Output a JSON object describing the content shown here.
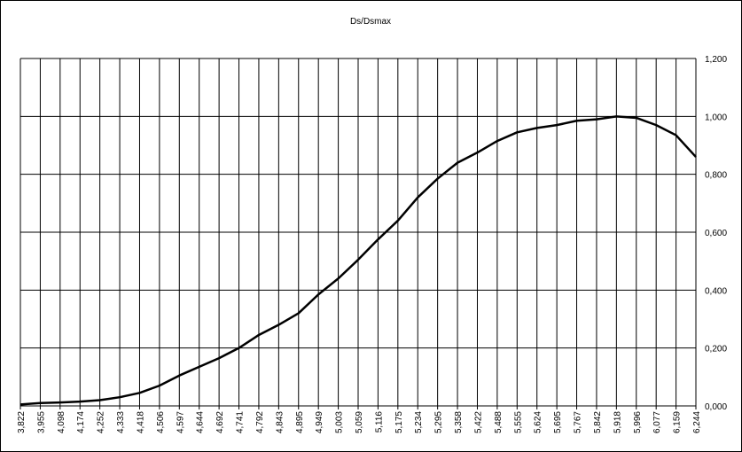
{
  "chart_data": {
    "type": "line",
    "title": "Ds/Dsmax",
    "categories": [
      "3,822",
      "3,955",
      "4,098",
      "4,174",
      "4,252",
      "4,333",
      "4,418",
      "4,506",
      "4,597",
      "4,644",
      "4,692",
      "4,741",
      "4,792",
      "4,843",
      "4,895",
      "4,949",
      "5,003",
      "5,059",
      "5,116",
      "5,175",
      "5,234",
      "5,295",
      "5,358",
      "5,422",
      "5,488",
      "5,555",
      "5,624",
      "5,695",
      "5,767",
      "5,842",
      "5,918",
      "5,996",
      "6,077",
      "6,159",
      "6,244"
    ],
    "values": [
      0.005,
      0.01,
      0.012,
      0.015,
      0.02,
      0.03,
      0.045,
      0.07,
      0.105,
      0.135,
      0.165,
      0.2,
      0.245,
      0.28,
      0.32,
      0.385,
      0.44,
      0.505,
      0.575,
      0.64,
      0.72,
      0.785,
      0.84,
      0.875,
      0.915,
      0.945,
      0.96,
      0.97,
      0.985,
      0.99,
      1.0,
      0.995,
      0.97,
      0.935,
      0.86
    ],
    "color": "#000000",
    "ylim": [
      0,
      1.2
    ],
    "yticks": [
      {
        "value": 0,
        "label": "0,000"
      },
      {
        "value": 0.2,
        "label": "0,200"
      },
      {
        "value": 0.4,
        "label": "0,400"
      },
      {
        "value": 0.6,
        "label": "0,600"
      },
      {
        "value": 0.8,
        "label": "0,800"
      },
      {
        "value": 1.0,
        "label": "1,000"
      },
      {
        "value": 1.2,
        "label": "1,200"
      }
    ],
    "grid": true
  }
}
